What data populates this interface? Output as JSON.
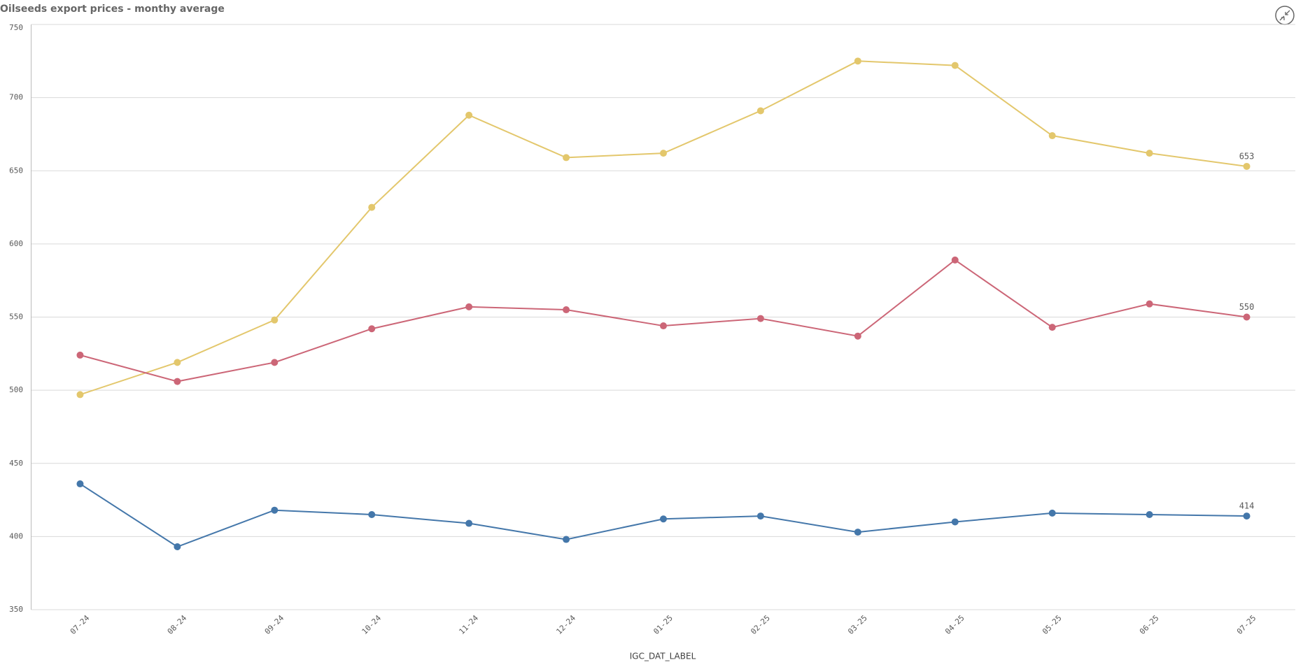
{
  "chart_data": {
    "type": "line",
    "title": "Oilseeds export prices - monthy average",
    "x_label": "IGC_DAT_LABEL",
    "categories": [
      "07-24",
      "08-24",
      "09-24",
      "10-24",
      "11-24",
      "12-24",
      "01-25",
      "02-25",
      "03-25",
      "04-25",
      "05-25",
      "06-25",
      "07-25"
    ],
    "series": [
      {
        "color": "#e3c76c",
        "values": [
          497,
          519,
          548,
          625,
          688,
          659,
          662,
          691,
          725,
          722,
          674,
          662,
          653
        ]
      },
      {
        "color": "#cc6677",
        "values": [
          524,
          506,
          519,
          542,
          557,
          555,
          544,
          549,
          537,
          589,
          543,
          559,
          550
        ]
      },
      {
        "color": "#4477aa",
        "values": [
          436,
          393,
          418,
          415,
          409,
          398,
          412,
          414,
          403,
          410,
          416,
          415,
          414
        ]
      }
    ],
    "ylim": [
      350,
      750
    ],
    "yticks": [
      350,
      400,
      450,
      500,
      550,
      600,
      650,
      700,
      750
    ],
    "grid": true
  }
}
